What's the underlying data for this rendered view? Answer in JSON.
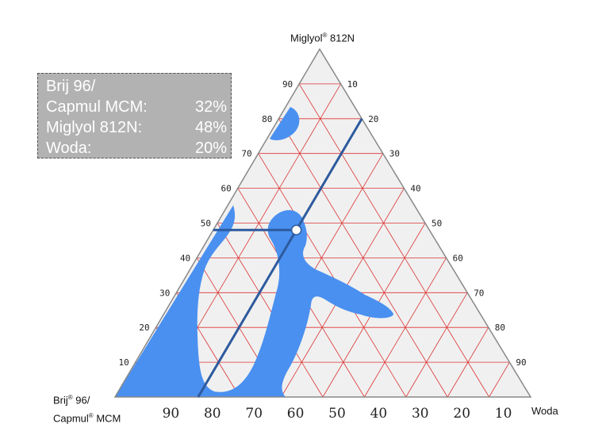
{
  "chart_data": {
    "type": "ternary",
    "vertices": {
      "top": {
        "name": "Miglyol",
        "reg": "®",
        "suffix": " 812N"
      },
      "left": {
        "line1": "Brij",
        "line1_reg": "®",
        "line1_suffix": " 96/",
        "line2": "Capmul",
        "line2_reg": "®",
        "line2_suffix": " MCM"
      },
      "right": {
        "name": "Woda"
      }
    },
    "grid_step": 10,
    "ticks_left": [
      "90",
      "80",
      "70",
      "60",
      "50",
      "40",
      "30",
      "20",
      "10"
    ],
    "ticks_right": [
      "10",
      "20",
      "30",
      "40",
      "50",
      "60",
      "70",
      "80",
      "90"
    ],
    "ticks_bottom": [
      "90",
      "80",
      "70",
      "60",
      "50",
      "40",
      "30",
      "20",
      "10"
    ],
    "legend": {
      "title": "Brij 96/",
      "rows": [
        {
          "label": "Capmul MCM:",
          "value": "32%"
        },
        {
          "label": "Miglyol 812N:",
          "value": "48%"
        },
        {
          "label": "Woda:",
          "value": "20%"
        }
      ]
    },
    "point": {
      "surfactant": 32,
      "oil": 48,
      "water": 20
    },
    "colors": {
      "region": "#4a90f0",
      "grid": "#dd3333",
      "triangle_fill": "#f0f0f0",
      "guide": "#2d5a9e",
      "edge": "#888888"
    }
  }
}
